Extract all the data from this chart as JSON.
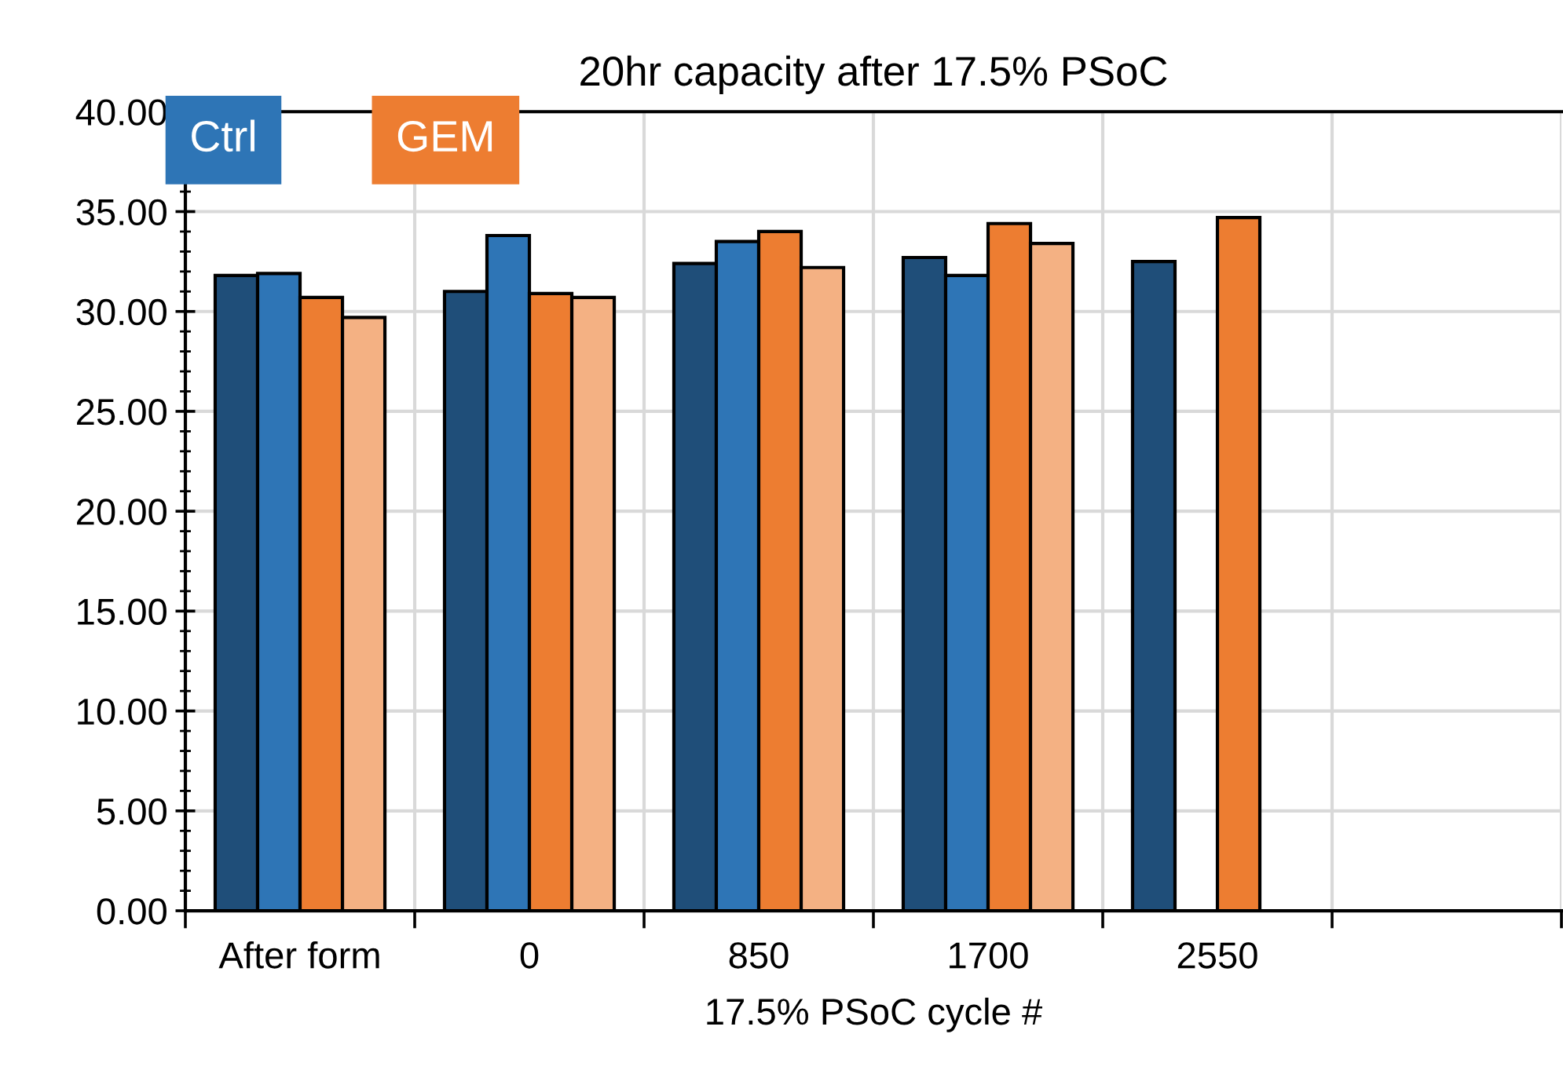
{
  "chart_data": {
    "type": "bar",
    "title": "20hr capacity after 17.5% PSoC",
    "xlabel": "17.5% PSoC cycle #",
    "categories": [
      "After form",
      "0",
      "850",
      "1700",
      "2550",
      null
    ],
    "series": [
      {
        "color": "#1f4e79",
        "values": [
          31.8,
          31.0,
          32.4,
          32.7,
          32.5,
          null
        ]
      },
      {
        "name": "Ctrl",
        "color": "#2e75b6",
        "values": [
          31.9,
          33.8,
          33.5,
          31.8,
          null,
          null
        ]
      },
      {
        "name": "GEM",
        "color": "#ed7d31",
        "values": [
          30.7,
          30.9,
          34.0,
          34.4,
          34.7,
          null
        ]
      },
      {
        "color": "#f4b183",
        "values": [
          29.7,
          30.7,
          32.2,
          33.4,
          null,
          null
        ]
      }
    ],
    "ylim": [
      0,
      40
    ],
    "yticks": [
      {
        "value": 0,
        "label": "0.00"
      },
      {
        "value": 5,
        "label": "5.00"
      },
      {
        "value": 10,
        "label": "10.00"
      },
      {
        "value": 15,
        "label": "15.00"
      },
      {
        "value": 20,
        "label": "20.00"
      },
      {
        "value": 25,
        "label": "25.00"
      },
      {
        "value": 30,
        "label": "30.00"
      },
      {
        "value": 35,
        "label": "35.00"
      },
      {
        "value": 40,
        "label": "40.00"
      }
    ],
    "grid": true,
    "legend": "top left"
  }
}
